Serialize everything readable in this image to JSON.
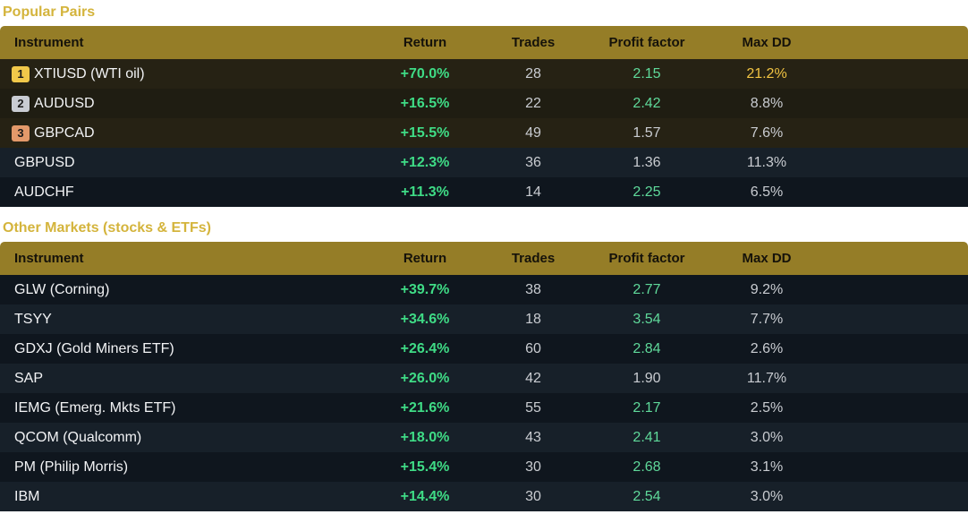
{
  "popular": {
    "title": "Popular Pairs",
    "headers": {
      "instrument": "Instrument",
      "return": "Return",
      "trades": "Trades",
      "profit_factor": "Profit factor",
      "max_dd": "Max DD"
    },
    "rows": [
      {
        "rank": "1",
        "instrument": "XTIUSD (WTI oil)",
        "return": "+70.0%",
        "trades": "28",
        "profit_factor": "2.15",
        "max_dd": "21.2%"
      },
      {
        "rank": "2",
        "instrument": "AUDUSD",
        "return": "+16.5%",
        "trades": "22",
        "profit_factor": "2.42",
        "max_dd": "8.8%"
      },
      {
        "rank": "3",
        "instrument": "GBPCAD",
        "return": "+15.5%",
        "trades": "49",
        "profit_factor": "1.57",
        "max_dd": "7.6%"
      },
      {
        "instrument": "GBPUSD",
        "return": "+12.3%",
        "trades": "36",
        "profit_factor": "1.36",
        "max_dd": "11.3%"
      },
      {
        "instrument": "AUDCHF",
        "return": "+11.3%",
        "trades": "14",
        "profit_factor": "2.25",
        "max_dd": "6.5%"
      }
    ]
  },
  "other": {
    "title": "Other Markets (stocks & ETFs)",
    "headers": {
      "instrument": "Instrument",
      "return": "Return",
      "trades": "Trades",
      "profit_factor": "Profit factor",
      "max_dd": "Max DD"
    },
    "rows": [
      {
        "instrument": "GLW (Corning)",
        "return": "+39.7%",
        "trades": "38",
        "profit_factor": "2.77",
        "max_dd": "9.2%"
      },
      {
        "instrument": "TSYY",
        "return": "+34.6%",
        "trades": "18",
        "profit_factor": "3.54",
        "max_dd": "7.7%"
      },
      {
        "instrument": "GDXJ (Gold Miners ETF)",
        "return": "+26.4%",
        "trades": "60",
        "profit_factor": "2.84",
        "max_dd": "2.6%"
      },
      {
        "instrument": "SAP",
        "return": "+26.0%",
        "trades": "42",
        "profit_factor": "1.90",
        "max_dd": "11.7%"
      },
      {
        "instrument": "IEMG (Emerg. Mkts ETF)",
        "return": "+21.6%",
        "trades": "55",
        "profit_factor": "2.17",
        "max_dd": "2.5%"
      },
      {
        "instrument": "QCOM (Qualcomm)",
        "return": "+18.0%",
        "trades": "43",
        "profit_factor": "2.41",
        "max_dd": "3.0%"
      },
      {
        "instrument": "PM (Philip Morris)",
        "return": "+15.4%",
        "trades": "30",
        "profit_factor": "2.68",
        "max_dd": "3.1%"
      },
      {
        "instrument": "IBM",
        "return": "+14.4%",
        "trades": "30",
        "profit_factor": "2.54",
        "max_dd": "3.0%"
      }
    ]
  },
  "colors": {
    "header_bg": "#957d27",
    "section_title": "#d4b43c",
    "return_positive": "#3fdc86",
    "profit_factor_good": "#5fd99a",
    "drawdown_warning": "#f0c342",
    "rank_gold": "#f1c84a",
    "rank_silver": "#c9ccd3",
    "rank_bronze": "#e3996a"
  }
}
